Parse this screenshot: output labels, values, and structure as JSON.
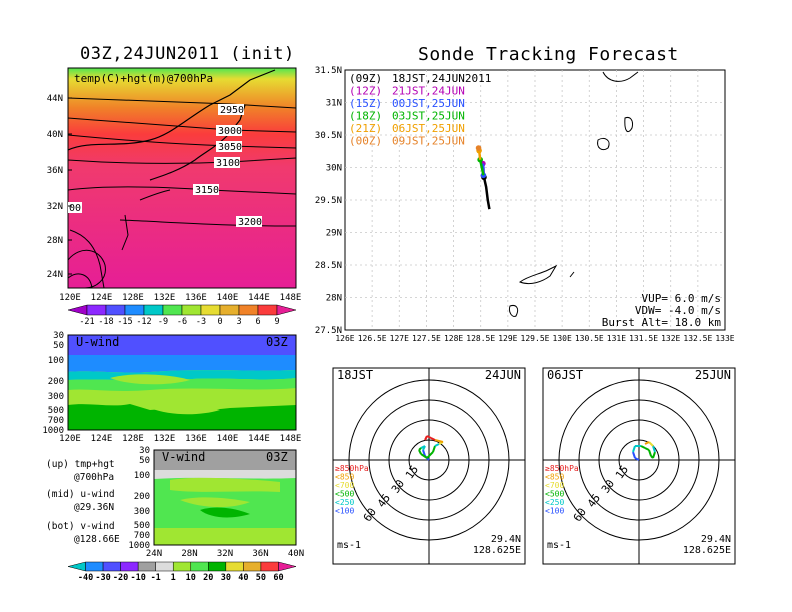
{
  "left_title": "03Z,24JUN2011 (init)",
  "right_title": "Sonde Tracking Forecast",
  "top_map": {
    "label": "temp(C)+hgt(m)@700hPa",
    "lat_ticks": [
      "44N",
      "40N",
      "36N",
      "32N",
      "28N",
      "24N"
    ],
    "lon_ticks": [
      "120E",
      "124E",
      "128E",
      "132E",
      "136E",
      "140E",
      "144E",
      "148E"
    ],
    "contours": [
      "2950",
      "3000",
      "3050",
      "3100",
      "3150",
      "3200"
    ],
    "contour_partial": "00"
  },
  "temp_colorbar": {
    "labels": [
      "-21",
      "-18",
      "-15",
      "-12",
      "-9",
      "-6",
      "-3",
      "0",
      "3",
      "6",
      "9"
    ],
    "colors": [
      "#a000c8",
      "#8c28ff",
      "#5050ff",
      "#1e8cff",
      "#00c8c8",
      "#50e650",
      "#a0e632",
      "#e6dc32",
      "#e6af2d",
      "#f08228",
      "#fa3c3c",
      "#e61e96"
    ]
  },
  "uwind": {
    "label": "U-wind",
    "time": "03Z",
    "pressure_ticks": [
      "30",
      "50",
      "100",
      "200",
      "300",
      "500",
      "700",
      "1000"
    ],
    "lon_ticks": [
      "120E",
      "124E",
      "128E",
      "132E",
      "136E",
      "140E",
      "144E",
      "148E"
    ]
  },
  "vwind": {
    "label": "V-wind",
    "time": "03Z",
    "pressure_ticks": [
      "30",
      "50",
      "100",
      "200",
      "300",
      "500",
      "700",
      "1000"
    ],
    "lat_ticks": [
      "24N",
      "28N",
      "32N",
      "36N",
      "40N"
    ]
  },
  "notes": [
    {
      "line1": "(up) tmp+hgt",
      "line2": "@700hPa"
    },
    {
      "line1": "(mid) u-wind",
      "line2": "@29.36N"
    },
    {
      "line1": "(bot) v-wind",
      "line2": "@128.66E"
    }
  ],
  "wind_colorbar": {
    "labels": [
      "-40",
      "-30",
      "-20",
      "-10",
      "-1",
      "1",
      "10",
      "20",
      "30",
      "40",
      "50",
      "60"
    ],
    "colors": [
      "#00c8c8",
      "#1e8cff",
      "#5050ff",
      "#8c28ff",
      "#a0a0a0",
      "#dcdcdc",
      "#a0e632",
      "#50e650",
      "#00b400",
      "#e6dc32",
      "#e6af2d",
      "#fa3c3c",
      "#e61e96"
    ]
  },
  "track_map": {
    "lat_ticks": [
      "31.5N",
      "31N",
      "30.5N",
      "30N",
      "29.5N",
      "29N",
      "28.5N",
      "28N",
      "27.5N"
    ],
    "lon_ticks": [
      "126E",
      "126.5E",
      "127E",
      "127.5E",
      "128E",
      "128.5E",
      "129E",
      "129.5E",
      "130E",
      "130.5E",
      "131E",
      "131.5E",
      "132E",
      "132.5E",
      "133E"
    ],
    "legend": [
      {
        "code": "(09Z)",
        "time": "18JST,24JUN2011",
        "color": "#000000"
      },
      {
        "code": "(12Z)",
        "time": "21JST,24JUN",
        "color": "#b400b4"
      },
      {
        "code": "(15Z)",
        "time": "00JST,25JUN",
        "color": "#2850ff"
      },
      {
        "code": "(18Z)",
        "time": "03JST,25JUN",
        "color": "#00b400"
      },
      {
        "code": "(21Z)",
        "time": "06JST,25JUN",
        "color": "#f0a000"
      },
      {
        "code": "(00Z)",
        "time": "09JST,25JUN",
        "color": "#e68228"
      }
    ],
    "params": [
      "VUP=  6.0 m/s",
      "VDW= -4.0 m/s",
      "Burst Alt= 18.0 km"
    ]
  },
  "hodographs": [
    {
      "time": "18JST",
      "date": "24JUN",
      "rings": [
        "15",
        "30",
        "45",
        "60"
      ],
      "levels": [
        {
          "label": "≥850hPa",
          "color": "#e61e1e"
        },
        {
          "label": "<850",
          "color": "#f0a000"
        },
        {
          "label": "<700",
          "color": "#e6dc32"
        },
        {
          "label": "<500",
          "color": "#00b400"
        },
        {
          "label": "<250",
          "color": "#00c8c8"
        },
        {
          "label": "<100",
          "color": "#2850ff"
        }
      ],
      "unit": "ms-1",
      "lat": "29.4N",
      "lon": "128.625E"
    },
    {
      "time": "06JST",
      "date": "25JUN",
      "rings": [
        "15",
        "30",
        "45",
        "60"
      ],
      "levels": [
        {
          "label": "≥850hPa",
          "color": "#e61e1e"
        },
        {
          "label": "<850",
          "color": "#f0a000"
        },
        {
          "label": "<700",
          "color": "#e6dc32"
        },
        {
          "label": "<500",
          "color": "#00b400"
        },
        {
          "label": "<250",
          "color": "#00c8c8"
        },
        {
          "label": "<100",
          "color": "#2850ff"
        }
      ],
      "unit": "ms-1",
      "lat": "29.4N",
      "lon": "128.625E"
    }
  ],
  "chart_data": {
    "type": "line",
    "x_label_units": "longitude (deg E)",
    "y_label_units": "latitude (deg N)",
    "xlim": [
      126,
      133
    ],
    "ylim": [
      27.5,
      31.5
    ],
    "series": [
      {
        "name": "(09Z) 18JST,24JUN2011",
        "x": [
          128.66,
          128.63,
          128.6,
          128.56
        ],
        "y": [
          29.36,
          29.5,
          29.7,
          29.85
        ]
      },
      {
        "name": "(12Z) 21JST,24JUN",
        "x": [
          128.56,
          128.55,
          128.54
        ],
        "y": [
          29.85,
          29.98,
          30.06
        ]
      },
      {
        "name": "(15Z) 00JST,25JUN",
        "x": [
          128.54,
          128.55,
          128.55
        ],
        "y": [
          30.06,
          30.0,
          29.88
        ]
      },
      {
        "name": "(18Z) 03JST,25JUN",
        "x": [
          128.55,
          128.52,
          128.49
        ],
        "y": [
          29.88,
          30.0,
          30.12
        ]
      },
      {
        "name": "(21Z) 06JST,25JUN",
        "x": [
          128.49,
          128.48,
          128.47
        ],
        "y": [
          30.12,
          30.2,
          30.26
        ]
      },
      {
        "name": "(00Z) 09JST,25JUN",
        "x": [
          128.47,
          128.46
        ],
        "y": [
          30.26,
          30.3
        ]
      }
    ]
  }
}
